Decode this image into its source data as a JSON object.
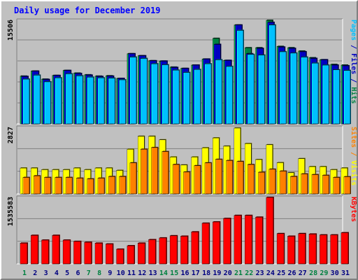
{
  "title": "Daily usage for December 2019",
  "colors": {
    "background": "#c0c0c0",
    "plot": "#c0c0c0",
    "grid": "#808080",
    "title": "#0000ff",
    "hits": "#008040",
    "files": "#0000c0",
    "pages": "#00c0ff",
    "visits": "#ffff00",
    "sites": "#ff8000",
    "kbytes": "#ff0000",
    "weekday_label": "#000080",
    "weekend_label": "#008040"
  },
  "chart_data": [
    {
      "type": "bar",
      "panel": "top",
      "y_max_label": "15506",
      "ymax": 15506,
      "right_label": [
        {
          "text": "Pages",
          "color_key": "pages"
        },
        {
          "text": " / ",
          "color_key": "files"
        },
        {
          "text": "Files",
          "color_key": "files"
        },
        {
          "text": " / ",
          "color_key": "files"
        },
        {
          "text": "Hits",
          "color_key": "hits"
        }
      ],
      "categories": [
        "1",
        "2",
        "3",
        "4",
        "5",
        "6",
        "7",
        "8",
        "9",
        "10",
        "11",
        "12",
        "13",
        "14",
        "15",
        "16",
        "17",
        "18",
        "19",
        "20",
        "21",
        "22",
        "23",
        "24",
        "25",
        "26",
        "27",
        "28",
        "29",
        "30",
        "31"
      ],
      "weekend": [
        1,
        7,
        8,
        14,
        15,
        21,
        22,
        28,
        29
      ],
      "series": [
        {
          "name": "Hits",
          "color_key": "hits",
          "values": [
            7150,
            7900,
            6700,
            7250,
            8000,
            7600,
            7350,
            7150,
            7200,
            6800,
            10500,
            10200,
            9450,
            9400,
            8500,
            8300,
            8800,
            9700,
            12800,
            9500,
            14800,
            11400,
            11400,
            15500,
            11600,
            11400,
            10900,
            9900,
            9600,
            8900,
            8800
          ]
        },
        {
          "name": "Files",
          "color_key": "files",
          "values": [
            7100,
            7900,
            6650,
            7250,
            8000,
            7550,
            7300,
            7100,
            7150,
            6800,
            10500,
            10200,
            9450,
            9400,
            8450,
            8300,
            8800,
            9700,
            11900,
            9500,
            14800,
            10500,
            11300,
            15200,
            11500,
            11300,
            10800,
            9800,
            9600,
            8800,
            8700
          ]
        },
        {
          "name": "Pages",
          "color_key": "pages",
          "values": [
            6700,
            7300,
            6300,
            6900,
            7500,
            7200,
            7000,
            6900,
            6850,
            6600,
            10000,
            9800,
            9000,
            8850,
            8050,
            7700,
            8150,
            9000,
            9600,
            8600,
            14000,
            10400,
            10300,
            14800,
            10800,
            10600,
            10000,
            9100,
            8800,
            8100,
            8000
          ]
        }
      ]
    },
    {
      "type": "bar",
      "panel": "middle",
      "y_max_label": "2827",
      "ymax": 2827,
      "right_label": [
        {
          "text": "Sites",
          "color_key": "sites"
        },
        {
          "text": " / ",
          "color_key": "sites"
        },
        {
          "text": "Visits",
          "color_key": "visits"
        }
      ],
      "categories": [
        "1",
        "2",
        "3",
        "4",
        "5",
        "6",
        "7",
        "8",
        "9",
        "10",
        "11",
        "12",
        "13",
        "14",
        "15",
        "16",
        "17",
        "18",
        "19",
        "20",
        "21",
        "22",
        "23",
        "24",
        "25",
        "26",
        "27",
        "28",
        "29",
        "30",
        "31"
      ],
      "series": [
        {
          "name": "Visits",
          "color_key": "visits",
          "values": [
            1100,
            1100,
            1030,
            1030,
            1030,
            1100,
            1030,
            1100,
            1100,
            1000,
            1900,
            2450,
            2450,
            2300,
            1570,
            1230,
            1570,
            1960,
            2380,
            2030,
            2800,
            2140,
            1460,
            2090,
            1330,
            900,
            1500,
            1160,
            1160,
            1030,
            1100
          ]
        },
        {
          "name": "Sites",
          "color_key": "sites",
          "values": [
            700,
            770,
            700,
            700,
            700,
            670,
            640,
            670,
            740,
            740,
            1320,
            1900,
            1970,
            1800,
            1250,
            930,
            1200,
            1320,
            1470,
            1420,
            1380,
            1250,
            920,
            1050,
            970,
            740,
            850,
            820,
            790,
            700,
            730
          ]
        }
      ]
    },
    {
      "type": "bar",
      "panel": "bottom",
      "y_max_label": "1535583",
      "ymax": 1535583,
      "right_label": [
        {
          "text": "KBytes",
          "color_key": "kbytes"
        }
      ],
      "categories": [
        "1",
        "2",
        "3",
        "4",
        "5",
        "6",
        "7",
        "8",
        "9",
        "10",
        "11",
        "12",
        "13",
        "14",
        "15",
        "16",
        "17",
        "18",
        "19",
        "20",
        "21",
        "22",
        "23",
        "24",
        "25",
        "26",
        "27",
        "28",
        "29",
        "30",
        "31"
      ],
      "series": [
        {
          "name": "KBytes",
          "color_key": "kbytes",
          "values": [
            480000,
            660000,
            550000,
            660000,
            550000,
            520000,
            500000,
            480000,
            460000,
            340000,
            420000,
            480000,
            560000,
            600000,
            650000,
            640000,
            740000,
            940000,
            970000,
            1050000,
            1120000,
            1120000,
            1080000,
            1535583,
            700000,
            640000,
            700000,
            690000,
            670000,
            670000,
            720000
          ]
        }
      ]
    }
  ]
}
